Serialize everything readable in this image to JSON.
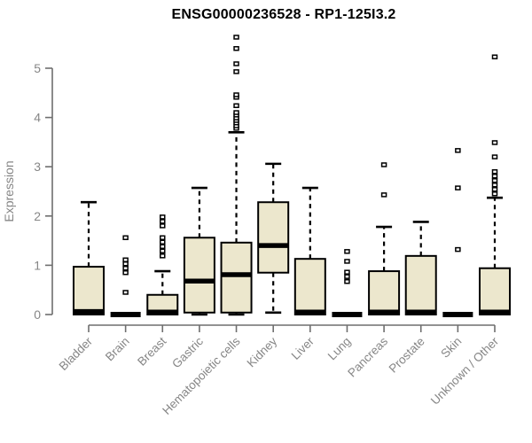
{
  "chart_data": {
    "type": "boxplot",
    "title": "ENSG00000236528 - RP1-125I3.2",
    "xlabel": "",
    "ylabel": "Expression",
    "ylim": [
      0,
      5.7
    ],
    "yticks": [
      0,
      1,
      2,
      3,
      4,
      5
    ],
    "grid": false,
    "legend": null,
    "categories": [
      "Bladder",
      "Brain",
      "Breast",
      "Gastric",
      "Hematopoietic cells",
      "Kidney",
      "Liver",
      "Lung",
      "Pancreas",
      "Prostate",
      "Skin",
      "Unknown / Other"
    ],
    "series": [
      {
        "name": "Bladder",
        "q1": 0,
        "median": 0.06,
        "q3": 0.97,
        "whisker_low": 0,
        "whisker_high": 2.28,
        "outliers": []
      },
      {
        "name": "Brain",
        "q1": 0,
        "median": 0,
        "q3": 0,
        "whisker_low": 0,
        "whisker_high": 0,
        "outliers": [
          0.45,
          0.85,
          0.94,
          1.03,
          1.11,
          1.56
        ]
      },
      {
        "name": "Breast",
        "q1": 0,
        "median": 0.05,
        "q3": 0.4,
        "whisker_low": 0,
        "whisker_high": 0.88,
        "outliers": [
          1.19,
          1.29,
          1.38,
          1.47,
          1.56,
          1.8,
          1.89,
          1.98
        ]
      },
      {
        "name": "Gastric",
        "q1": 0.04,
        "median": 0.68,
        "q3": 1.56,
        "whisker_low": 0,
        "whisker_high": 2.57,
        "outliers": []
      },
      {
        "name": "Hematopoietic cells",
        "q1": 0.04,
        "median": 0.81,
        "q3": 1.46,
        "whisker_low": 0,
        "whisker_high": 3.7,
        "outliers": [
          3.78,
          3.83,
          3.89,
          3.94,
          3.99,
          4.05,
          4.1,
          4.24,
          4.41,
          4.46,
          4.93,
          5.09,
          5.4,
          5.63
        ]
      },
      {
        "name": "Kidney",
        "q1": 0.85,
        "median": 1.4,
        "q3": 2.28,
        "whisker_low": 0.04,
        "whisker_high": 3.06,
        "outliers": []
      },
      {
        "name": "Liver",
        "q1": 0,
        "median": 0.05,
        "q3": 1.13,
        "whisker_low": 0,
        "whisker_high": 2.57,
        "outliers": []
      },
      {
        "name": "Lung",
        "q1": 0,
        "median": 0,
        "q3": 0,
        "whisker_low": 0,
        "whisker_high": 0,
        "outliers": [
          0.67,
          0.77,
          0.86,
          1.08,
          1.28
        ]
      },
      {
        "name": "Pancreas",
        "q1": 0,
        "median": 0.05,
        "q3": 0.88,
        "whisker_low": 0,
        "whisker_high": 1.78,
        "outliers": [
          2.43,
          3.04
        ]
      },
      {
        "name": "Prostate",
        "q1": 0,
        "median": 0.05,
        "q3": 1.19,
        "whisker_low": 0,
        "whisker_high": 1.88,
        "outliers": []
      },
      {
        "name": "Skin",
        "q1": 0,
        "median": 0,
        "q3": 0,
        "whisker_low": 0,
        "whisker_high": 0,
        "outliers": [
          1.32,
          2.57,
          3.33
        ]
      },
      {
        "name": "Unknown / Other",
        "q1": 0,
        "median": 0.05,
        "q3": 0.94,
        "whisker_low": 0,
        "whisker_high": 2.37,
        "outliers": [
          2.45,
          2.54,
          2.63,
          2.72,
          2.81,
          2.9,
          3.2,
          3.49,
          5.23
        ]
      }
    ],
    "colors": {
      "box_fill": "#ECE7CD",
      "box_border": "#000000",
      "median": "#000000",
      "whisker": "#000000",
      "outlier_stroke": "#000000",
      "outlier_fill": "#FFFFFF",
      "axis_line": "#6E6E6E",
      "axis_text": "#868686",
      "title_text": "#000000",
      "background": "#FFFFFF"
    }
  }
}
